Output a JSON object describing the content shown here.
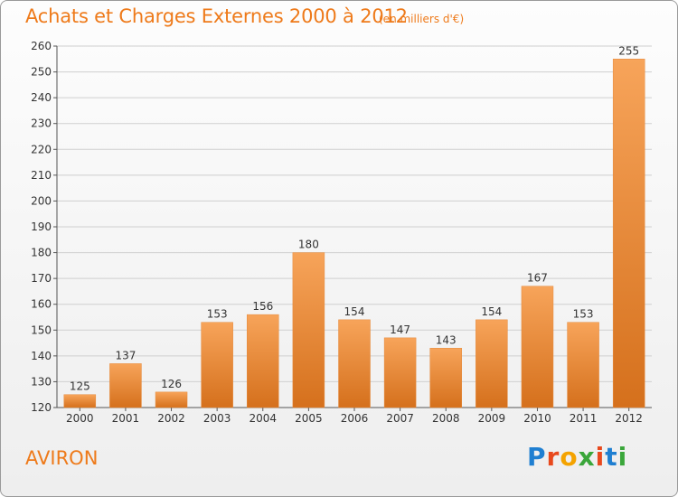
{
  "title": "Achats et Charges Externes 2000 à 2012",
  "subtitle": "(en milliers d'€)",
  "entity": "AVIRON",
  "logo": {
    "text": "Proxiti",
    "letters": [
      "P",
      "r",
      "o",
      "x",
      "i",
      "t",
      "i"
    ],
    "colors": [
      "#1f7fd1",
      "#e8491d",
      "#f4a300",
      "#3aa63a",
      "#e8491d",
      "#1f7fd1",
      "#3aa63a"
    ]
  },
  "colors": {
    "accent": "#ee7a1a",
    "bar_top": "#f7a45a",
    "bar_bottom": "#d5701c",
    "grid": "#cfcfcf"
  },
  "chart_data": {
    "type": "bar",
    "categories": [
      "2000",
      "2001",
      "2002",
      "2003",
      "2004",
      "2005",
      "2006",
      "2007",
      "2008",
      "2009",
      "2010",
      "2011",
      "2012"
    ],
    "values": [
      125,
      137,
      126,
      153,
      156,
      180,
      154,
      147,
      143,
      154,
      167,
      153,
      255
    ],
    "ylim": [
      120,
      260
    ],
    "yticks": [
      120,
      130,
      140,
      150,
      160,
      170,
      180,
      190,
      200,
      210,
      220,
      230,
      240,
      250,
      260
    ],
    "grid": true,
    "data_labels": true
  }
}
